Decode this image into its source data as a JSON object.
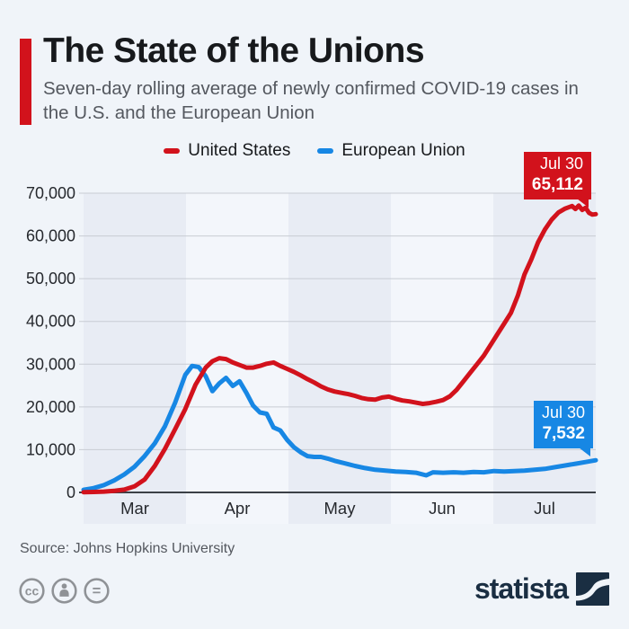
{
  "header": {
    "title": "The State of the Unions",
    "subtitle": "Seven-day rolling average of newly confirmed COVID-19 cases in the U.S. and the European Union"
  },
  "legend": {
    "items": [
      {
        "label": "United States",
        "color": "#d2121c"
      },
      {
        "label": "European Union",
        "color": "#1787e4"
      }
    ]
  },
  "chart_data": {
    "type": "line",
    "title": "The State of the Unions",
    "subtitle": "Seven-day rolling average of newly confirmed COVID-19 cases in the U.S. and the European Union",
    "x_axis": {
      "months": [
        "Mar",
        "Apr",
        "May",
        "Jun",
        "Jul"
      ],
      "range": "Mar 1 - Jul 30",
      "total_days": 151,
      "x_unit": "days since Mar 1"
    },
    "y_axis": {
      "max": 70000,
      "ticks": [
        0,
        10000,
        20000,
        30000,
        40000,
        50000,
        60000,
        70000
      ],
      "labels": [
        "0",
        "10,000",
        "20,000",
        "30,000",
        "40,000",
        "50,000",
        "60,000",
        "70,000"
      ]
    },
    "grid": true,
    "legend_position": "top-center",
    "band_shading": "alternating month stripes, odd months darker",
    "series": [
      {
        "name": "United States",
        "color": "#d2121c",
        "points": [
          [
            0,
            70
          ],
          [
            3,
            100
          ],
          [
            6,
            180
          ],
          [
            9,
            350
          ],
          [
            12,
            650
          ],
          [
            15,
            1400
          ],
          [
            18,
            3000
          ],
          [
            21,
            6200
          ],
          [
            24,
            10200
          ],
          [
            27,
            14800
          ],
          [
            30,
            19500
          ],
          [
            33,
            25200
          ],
          [
            36,
            29200
          ],
          [
            38,
            30700
          ],
          [
            40,
            31400
          ],
          [
            42,
            31200
          ],
          [
            44,
            30400
          ],
          [
            46,
            29800
          ],
          [
            48,
            29200
          ],
          [
            50,
            29200
          ],
          [
            52,
            29600
          ],
          [
            54,
            30100
          ],
          [
            56,
            30400
          ],
          [
            58,
            29600
          ],
          [
            60,
            28900
          ],
          [
            62,
            28200
          ],
          [
            64,
            27400
          ],
          [
            66,
            26500
          ],
          [
            68,
            25700
          ],
          [
            70,
            24800
          ],
          [
            72,
            24100
          ],
          [
            74,
            23600
          ],
          [
            76,
            23300
          ],
          [
            78,
            23000
          ],
          [
            80,
            22600
          ],
          [
            82,
            22100
          ],
          [
            84,
            21800
          ],
          [
            86,
            21700
          ],
          [
            88,
            22200
          ],
          [
            90,
            22400
          ],
          [
            92,
            21900
          ],
          [
            94,
            21500
          ],
          [
            96,
            21300
          ],
          [
            98,
            21000
          ],
          [
            100,
            20700
          ],
          [
            102,
            20900
          ],
          [
            104,
            21200
          ],
          [
            106,
            21600
          ],
          [
            108,
            22500
          ],
          [
            110,
            24000
          ],
          [
            112,
            26000
          ],
          [
            114,
            28000
          ],
          [
            116,
            30000
          ],
          [
            118,
            32000
          ],
          [
            120,
            34500
          ],
          [
            122,
            37000
          ],
          [
            124,
            39500
          ],
          [
            126,
            42000
          ],
          [
            128,
            46000
          ],
          [
            130,
            51000
          ],
          [
            132,
            54500
          ],
          [
            134,
            58500
          ],
          [
            136,
            61500
          ],
          [
            138,
            63800
          ],
          [
            140,
            65500
          ],
          [
            142,
            66400
          ],
          [
            144,
            67000
          ],
          [
            145,
            66300
          ],
          [
            146,
            67100
          ],
          [
            147,
            66100
          ],
          [
            148,
            66600
          ],
          [
            149,
            65400
          ],
          [
            150,
            65000
          ],
          [
            151,
            65112
          ]
        ]
      },
      {
        "name": "European Union",
        "color": "#1787e4",
        "points": [
          [
            0,
            600
          ],
          [
            3,
            1000
          ],
          [
            6,
            1700
          ],
          [
            9,
            2800
          ],
          [
            12,
            4200
          ],
          [
            15,
            6000
          ],
          [
            18,
            8500
          ],
          [
            21,
            11500
          ],
          [
            24,
            15500
          ],
          [
            27,
            21000
          ],
          [
            30,
            27500
          ],
          [
            32,
            29600
          ],
          [
            34,
            29300
          ],
          [
            36,
            27200
          ],
          [
            38,
            23700
          ],
          [
            40,
            25500
          ],
          [
            42,
            26800
          ],
          [
            44,
            24900
          ],
          [
            46,
            26000
          ],
          [
            48,
            23300
          ],
          [
            50,
            20300
          ],
          [
            52,
            18700
          ],
          [
            54,
            18400
          ],
          [
            56,
            15200
          ],
          [
            58,
            14500
          ],
          [
            60,
            12300
          ],
          [
            62,
            10600
          ],
          [
            64,
            9400
          ],
          [
            66,
            8500
          ],
          [
            68,
            8300
          ],
          [
            70,
            8300
          ],
          [
            72,
            7900
          ],
          [
            74,
            7400
          ],
          [
            76,
            7000
          ],
          [
            78,
            6600
          ],
          [
            80,
            6200
          ],
          [
            83,
            5700
          ],
          [
            86,
            5300
          ],
          [
            89,
            5100
          ],
          [
            92,
            4900
          ],
          [
            95,
            4800
          ],
          [
            98,
            4600
          ],
          [
            101,
            4000
          ],
          [
            103,
            4700
          ],
          [
            106,
            4600
          ],
          [
            109,
            4700
          ],
          [
            112,
            4600
          ],
          [
            115,
            4800
          ],
          [
            118,
            4700
          ],
          [
            121,
            5000
          ],
          [
            124,
            4900
          ],
          [
            127,
            5000
          ],
          [
            130,
            5100
          ],
          [
            133,
            5300
          ],
          [
            136,
            5500
          ],
          [
            139,
            5900
          ],
          [
            142,
            6300
          ],
          [
            145,
            6700
          ],
          [
            148,
            7100
          ],
          [
            151,
            7532
          ]
        ]
      }
    ],
    "annotations": {
      "us": {
        "date": "Jul 30",
        "value": "65,112"
      },
      "eu": {
        "date": "Jul 30",
        "value": "7,532"
      }
    }
  },
  "footer": {
    "source": "Source: Johns Hopkins University",
    "brand": "statista",
    "license_icons": [
      {
        "name": "cc-icon",
        "glyph": "cc"
      },
      {
        "name": "attribution-icon",
        "glyph": "person"
      },
      {
        "name": "no-derivatives-icon",
        "glyph": "="
      }
    ]
  },
  "colors": {
    "accent_red": "#d2121c",
    "eu_blue": "#1787e4",
    "background": "#f0f4f9",
    "band_dark": "#e8ecf4",
    "band_light": "#f3f6fb",
    "gridline": "#c8ccd3",
    "axis_line": "#3b4046",
    "title_text": "#17191c",
    "tick_text": "#26292e",
    "subtitle_text": "#54585f",
    "brand_navy": "#1a2e42",
    "icon_gray": "#8f9296"
  }
}
